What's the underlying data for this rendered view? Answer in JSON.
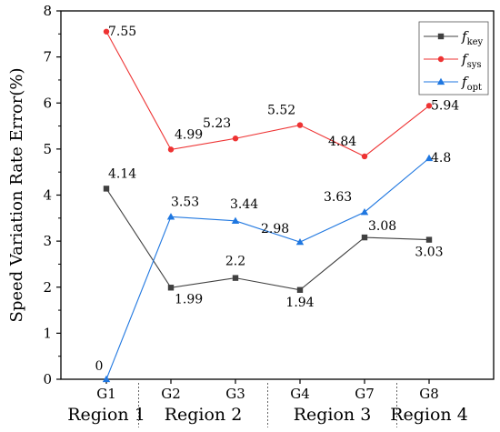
{
  "chart_data": {
    "type": "line",
    "ylabel": "Speed Variation Rate Error(%)",
    "xlabel": "",
    "title": "",
    "ylim": [
      0,
      8
    ],
    "yticks": [
      0,
      1,
      2,
      3,
      4,
      5,
      6,
      7,
      8
    ],
    "categories": [
      "G1",
      "G2",
      "G3",
      "G4",
      "G7",
      "G8"
    ],
    "regions": [
      {
        "label": "Region 1",
        "span": [
          0,
          0
        ]
      },
      {
        "label": "Region 2",
        "span": [
          1,
          2
        ]
      },
      {
        "label": "Region 3",
        "span": [
          3,
          4
        ]
      },
      {
        "label": "Region 4",
        "span": [
          5,
          5
        ]
      }
    ],
    "legend_position": "top-right",
    "grid": false,
    "series": [
      {
        "name": "f",
        "sub": "key",
        "color": "#404040",
        "marker": "square",
        "values": [
          4.14,
          1.99,
          2.2,
          1.94,
          3.08,
          3.03
        ],
        "labels": [
          "4.14",
          "1.99",
          "2.2",
          "1.94",
          "3.08",
          "3.03"
        ]
      },
      {
        "name": "f",
        "sub": "sys",
        "color": "#ee3333",
        "marker": "diamond",
        "values": [
          7.55,
          4.99,
          5.23,
          5.52,
          4.84,
          5.94
        ],
        "labels": [
          "7.55",
          "4.99",
          "5.23",
          "5.52",
          "4.84",
          "5.94"
        ]
      },
      {
        "name": "f",
        "sub": "opt",
        "color": "#1f77e0",
        "marker": "triangle",
        "values": [
          0,
          3.53,
          3.44,
          2.98,
          3.63,
          4.8
        ],
        "labels": [
          "0",
          "3.53",
          "3.44",
          "2.98",
          "3.63",
          "4.8"
        ]
      }
    ]
  }
}
